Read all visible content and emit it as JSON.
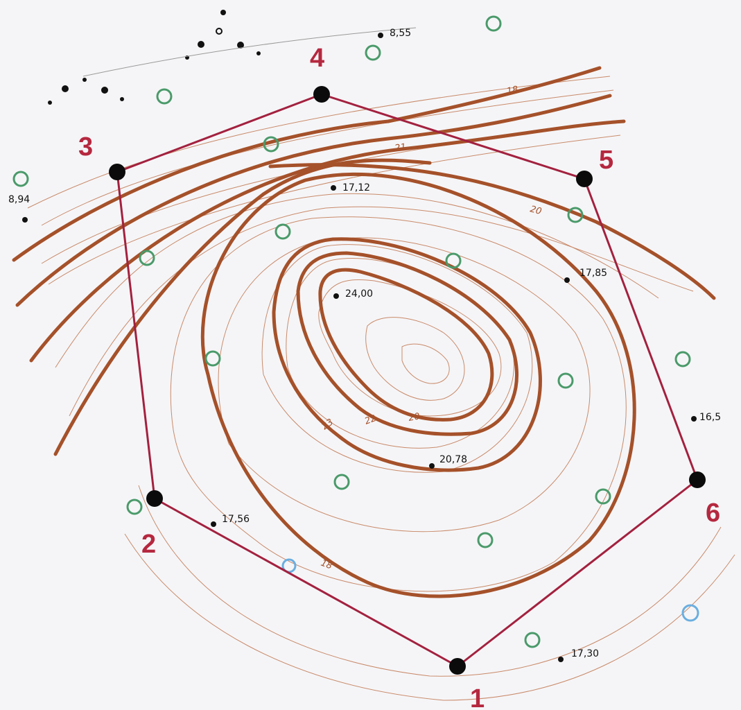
{
  "colors": {
    "background": "#f5f5f7",
    "index_contour": "#a5512a",
    "minor_contour": "#c98a6a",
    "boundary": "#a3213f",
    "vertex_label": "#b5283f",
    "vertex_marker": "#0b0b0b",
    "tree_symbol": "#4a9a6a",
    "water_symbol": "#6aaee0",
    "spot_point": "#111111"
  },
  "boundary": {
    "vertices": [
      {
        "label": "1"
      },
      {
        "label": "2"
      },
      {
        "label": "3"
      },
      {
        "label": "4"
      },
      {
        "label": "5"
      },
      {
        "label": "6"
      }
    ]
  },
  "spot_heights": [
    {
      "value": "8,55"
    },
    {
      "value": "8,94"
    },
    {
      "value": "17,12"
    },
    {
      "value": "24,00"
    },
    {
      "value": "17,85"
    },
    {
      "value": "16,5"
    },
    {
      "value": "20,78"
    },
    {
      "value": "17,56"
    },
    {
      "value": "17,30"
    }
  ],
  "contour_labels": [
    {
      "value": "18"
    },
    {
      "value": "21"
    },
    {
      "value": "20"
    },
    {
      "value": "22"
    },
    {
      "value": "23"
    },
    {
      "value": "20"
    },
    {
      "value": "18"
    }
  ],
  "symbols": {
    "tree": "tree-symbol-icon",
    "water": "water-symbol-icon"
  }
}
